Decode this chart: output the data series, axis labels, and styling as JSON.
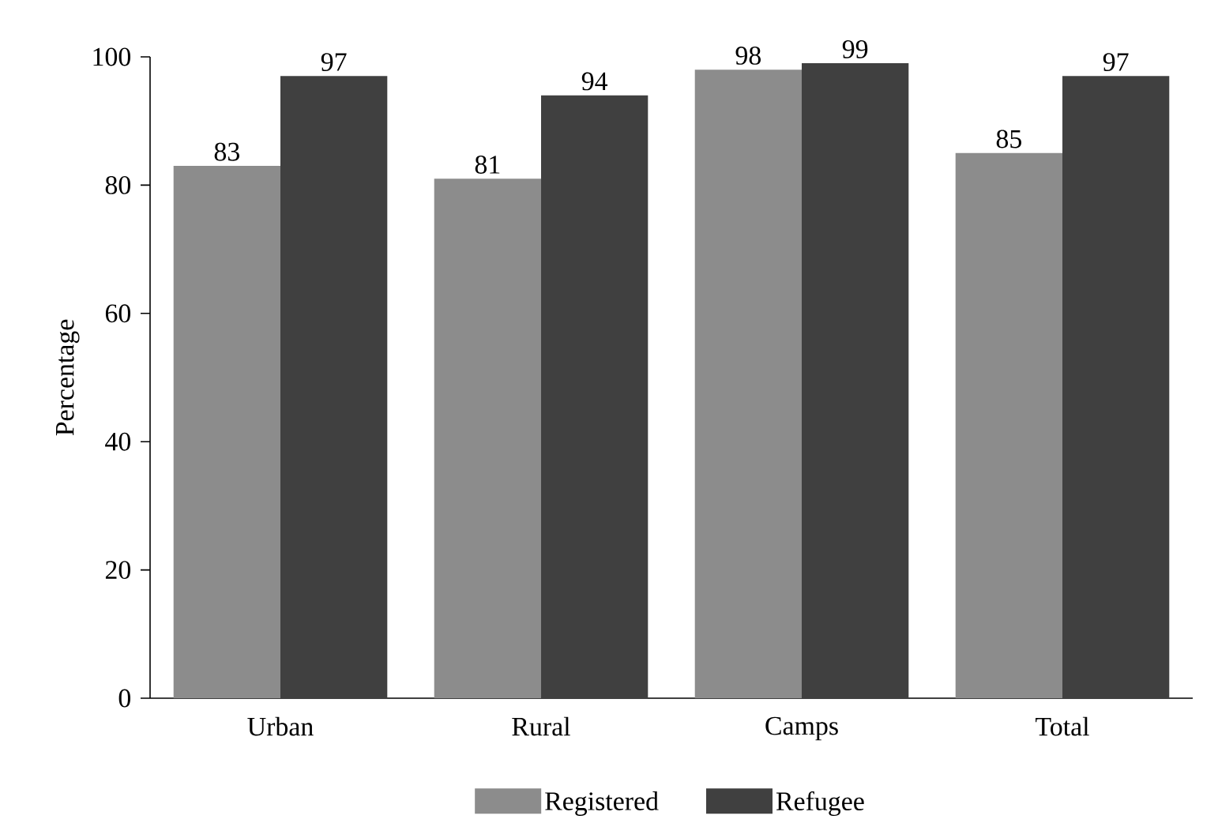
{
  "chart_data": {
    "type": "bar",
    "ylabel": "Percentage",
    "categories": [
      "Urban",
      "Rural",
      "Camps",
      "Total"
    ],
    "series": [
      {
        "name": "Registered",
        "color": "#8c8c8c",
        "values": [
          83,
          81,
          98,
          85
        ]
      },
      {
        "name": "Refugee",
        "color": "#404040",
        "values": [
          97,
          94,
          99,
          97
        ]
      }
    ],
    "ylim": [
      0,
      100
    ],
    "yticks": [
      0,
      20,
      40,
      60,
      80,
      100
    ],
    "data_labels": true,
    "legend": "bottom"
  }
}
